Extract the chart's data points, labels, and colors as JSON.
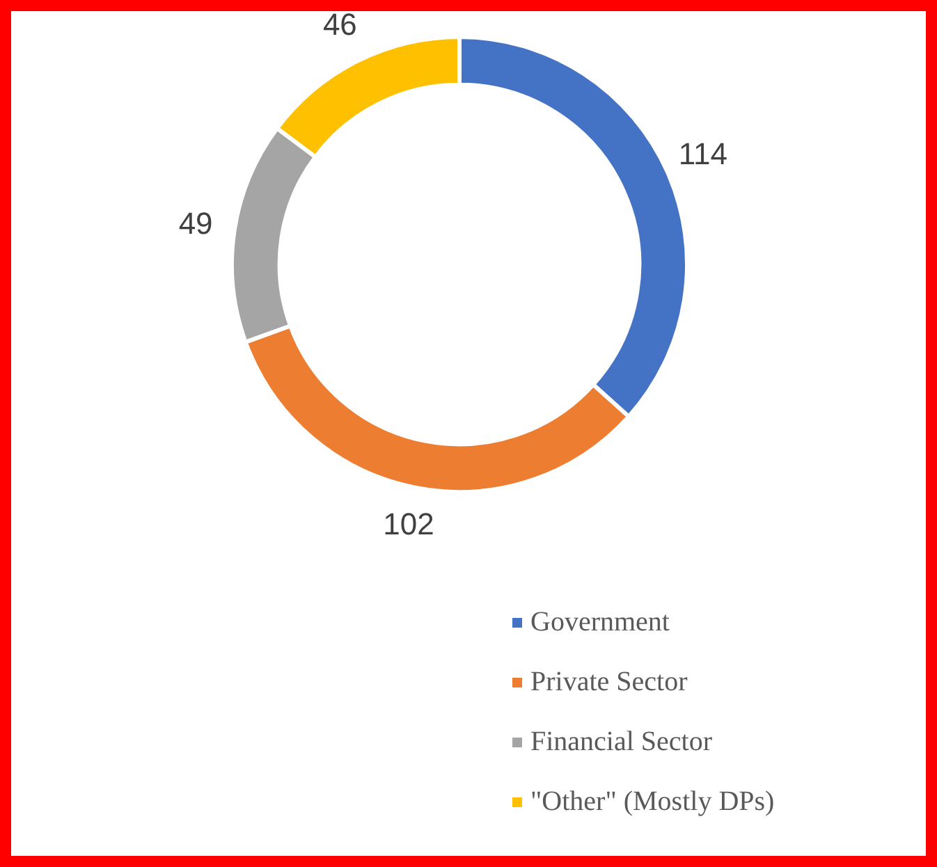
{
  "chart_data": {
    "type": "donut",
    "categories": [
      "Government",
      "Private Sector",
      "Financial Sector",
      "\"Other\" (Mostly DPs)"
    ],
    "values": [
      114,
      102,
      49,
      46
    ],
    "colors": [
      "#4472c4",
      "#ed7d31",
      "#a5a5a5",
      "#ffc000"
    ],
    "data_labels": true,
    "legend": "bottom right"
  }
}
